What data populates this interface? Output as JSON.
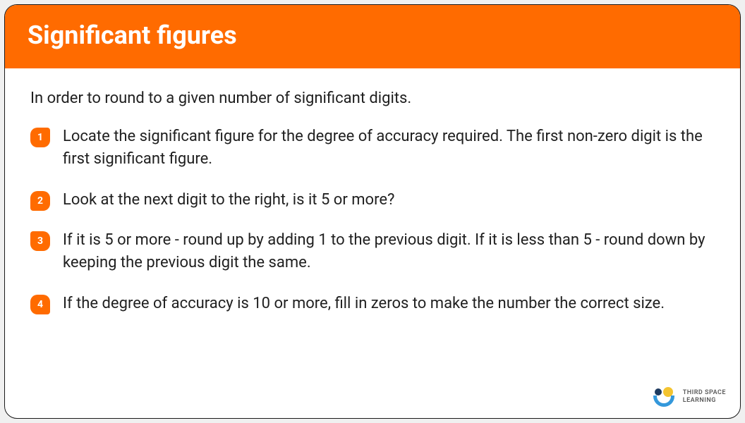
{
  "header": {
    "title": "Significant figures"
  },
  "intro": "In order to round to a given number of significant digits.",
  "steps": [
    {
      "num": "1",
      "text": "Locate the significant figure for the degree of accuracy required. The first non-zero digit is the first significant figure."
    },
    {
      "num": "2",
      "text": "Look at the next digit to the right, is it 5 or more?"
    },
    {
      "num": "3",
      "text": "If it is 5 or more - round up by adding 1 to the previous digit. If it is less than 5 - round down by keeping the previous digit the same."
    },
    {
      "num": "4",
      "text": "If the degree of accuracy is 10 or more, fill in zeros to make the number the correct size."
    }
  ],
  "logo": {
    "line1": "THIRD SPACE",
    "line2": "LEARNING"
  },
  "colors": {
    "accent": "#ff6b00",
    "text": "#1f1f1f",
    "white": "#ffffff",
    "logo_blue": "#3498db",
    "logo_navy": "#1e3a5f",
    "logo_yellow": "#f4c430"
  }
}
